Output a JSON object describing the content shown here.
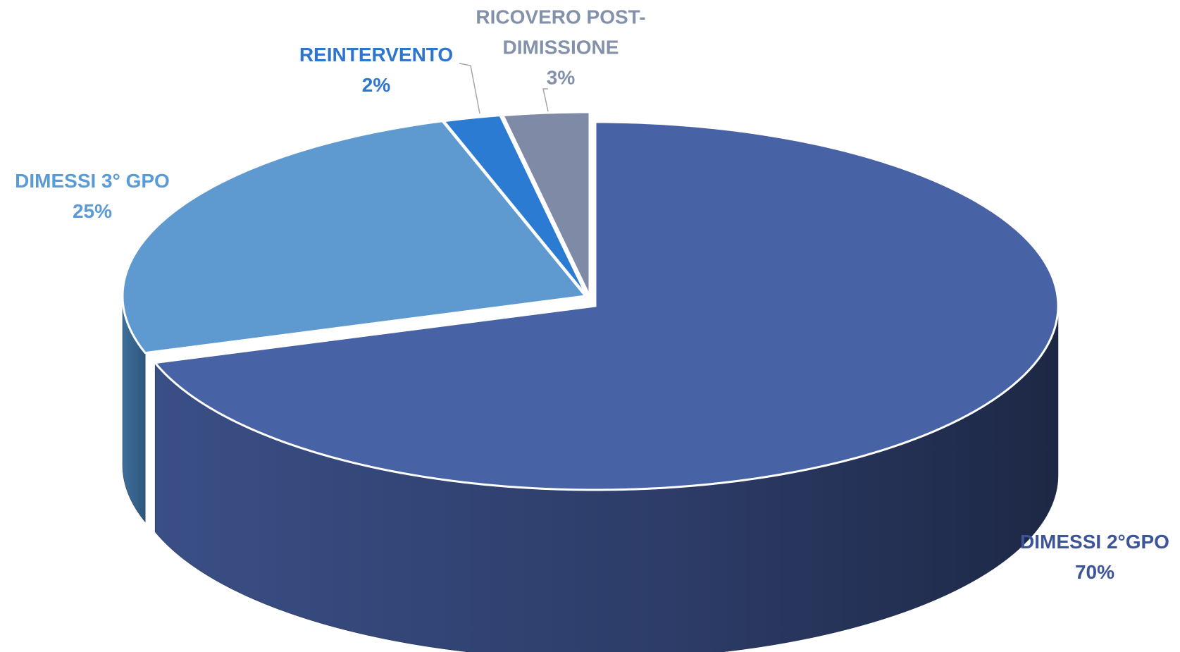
{
  "chart_data": {
    "type": "pie",
    "categories": [
      "DIMESSI 2°GPO",
      "DIMESSI 3° GPO",
      "REINTERVENTO",
      "RICOVERO POST-DIMISSIONE"
    ],
    "values": [
      70,
      25,
      2,
      3
    ],
    "value_labels": [
      "70%",
      "25%",
      "2%",
      "3%"
    ],
    "colors": [
      "#4862a6",
      "#5e9ad0",
      "#2b7bd2",
      "#7f8ba6"
    ],
    "label_colors": [
      "#3d5499",
      "#5b9bd5",
      "#2e75d0",
      "#8391ab"
    ]
  }
}
